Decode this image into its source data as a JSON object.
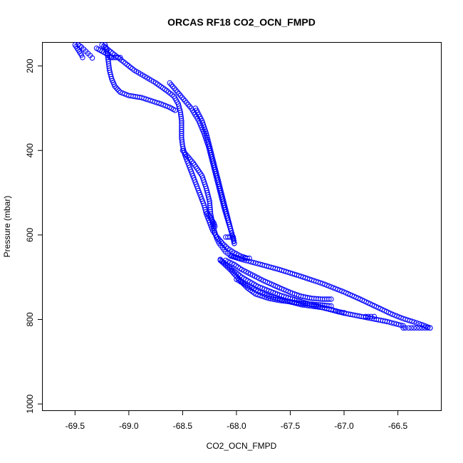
{
  "chart_data": {
    "type": "scatter",
    "title": "ORCAS RF18 CO2_OCN_FMPD",
    "xlabel": "CO2_OCN_FMPD",
    "ylabel": "Pressure (mbar)",
    "xlim": [
      -69.8,
      -66.1
    ],
    "ylim": [
      1015,
      145
    ],
    "y_reversed": true,
    "grid": false,
    "x_ticks": [
      -69.5,
      -69.0,
      -68.5,
      -68.0,
      -67.5,
      -67.0,
      -66.5
    ],
    "x_tick_labels": [
      "-69.5",
      "-69.0",
      "-68.5",
      "-68.0",
      "-67.5",
      "-67.0",
      "-66.5"
    ],
    "y_ticks": [
      200,
      400,
      600,
      800,
      1000
    ],
    "y_tick_labels": [
      "200",
      "400",
      "600",
      "800",
      "1000"
    ],
    "marker_color": "#0000ff",
    "series": [
      {
        "x": [
          -69.47,
          -69.44,
          -69.42,
          -69.4,
          -69.38,
          -69.36,
          -69.34
        ],
        "y": [
          150,
          155,
          160,
          165,
          170,
          175,
          181
        ]
      },
      {
        "x": [
          -69.5,
          -69.48,
          -69.46,
          -69.44,
          -69.43
        ],
        "y": [
          150,
          158,
          166,
          174,
          180
        ]
      },
      {
        "x": [
          -69.3,
          -69.25,
          -69.2,
          -69.18,
          -69.17,
          -69.16,
          -69.14,
          -69.12,
          -69.1,
          -69.08
        ],
        "y": [
          158,
          165,
          172,
          178,
          180,
          180,
          180,
          180,
          180,
          180
        ]
      },
      {
        "x": [
          -69.22,
          -69.2,
          -69.19,
          -69.18,
          -69.16,
          -69.13,
          -69.08,
          -69.0,
          -68.88,
          -68.7,
          -68.62,
          -68.57
        ],
        "y": [
          150,
          170,
          190,
          210,
          230,
          248,
          262,
          270,
          275,
          290,
          298,
          305
        ]
      },
      {
        "x": [
          -69.25,
          -69.15,
          -69.05,
          -68.95,
          -68.85,
          -68.75,
          -68.65,
          -68.58,
          -68.54,
          -68.52,
          -68.51,
          -68.51,
          -68.51,
          -68.5,
          -68.48,
          -68.45,
          -68.42,
          -68.39,
          -68.36,
          -68.33,
          -68.3,
          -68.28,
          -68.25,
          -68.22,
          -68.18,
          -68.13,
          -68.08,
          -68.02,
          -67.96,
          -67.9,
          -67.88
        ],
        "y": [
          150,
          170,
          190,
          210,
          225,
          240,
          258,
          272,
          290,
          310,
          330,
          350,
          370,
          390,
          410,
          430,
          450,
          470,
          490,
          510,
          530,
          550,
          570,
          590,
          605,
          620,
          632,
          642,
          650,
          655,
          655
        ]
      },
      {
        "x": [
          -68.62,
          -68.52,
          -68.42,
          -68.35,
          -68.3,
          -68.26,
          -68.23,
          -68.2,
          -68.17,
          -68.14,
          -68.11,
          -68.08,
          -68.05,
          -68.03,
          -68.02,
          -68.03,
          -68.06,
          -68.1
        ],
        "y": [
          240,
          270,
          300,
          330,
          360,
          390,
          420,
          450,
          480,
          510,
          540,
          565,
          590,
          608,
          620,
          605,
          605,
          605
        ]
      },
      {
        "x": [
          -68.38,
          -68.32,
          -68.28,
          -68.25,
          -68.22,
          -68.19,
          -68.16,
          -68.13,
          -68.1,
          -68.07,
          -68.04,
          -68.02
        ],
        "y": [
          300,
          330,
          360,
          390,
          420,
          450,
          480,
          510,
          540,
          570,
          600,
          620
        ]
      },
      {
        "x": [
          -68.5,
          -68.4,
          -68.32,
          -68.28,
          -68.25,
          -68.24,
          -68.22,
          -68.2,
          -68.18,
          -68.16,
          -68.13,
          -68.1,
          -68.06,
          -68.02,
          -67.98,
          -67.95,
          -67.92
        ],
        "y": [
          400,
          430,
          460,
          490,
          520,
          550,
          575,
          595,
          610,
          620,
          630,
          640,
          648,
          652,
          655,
          655,
          655
        ]
      },
      {
        "x": [
          -68.27,
          -68.25,
          -68.23,
          -68.21,
          -68.2
        ],
        "y": [
          548,
          556,
          564,
          572,
          580
        ]
      },
      {
        "x": [
          -68.05,
          -67.95,
          -67.8,
          -67.6,
          -67.4,
          -67.2,
          -67.0,
          -66.85,
          -66.7,
          -66.55,
          -66.45,
          -66.35,
          -66.28,
          -66.22,
          -66.2
        ],
        "y": [
          650,
          658,
          668,
          682,
          698,
          715,
          735,
          752,
          770,
          788,
          798,
          806,
          812,
          818,
          820
        ]
      },
      {
        "x": [
          -66.2,
          -66.25,
          -66.3,
          -66.35,
          -66.4,
          -66.43,
          -66.45
        ],
        "y": [
          820,
          820,
          820,
          820,
          820,
          820,
          820
        ]
      },
      {
        "x": [
          -66.45,
          -66.6,
          -66.8,
          -67.0,
          -67.2,
          -67.4,
          -67.6,
          -67.8,
          -67.95,
          -68.05,
          -68.12,
          -68.15
        ],
        "y": [
          815,
          805,
          795,
          785,
          772,
          758,
          742,
          722,
          700,
          680,
          665,
          658
        ]
      },
      {
        "x": [
          -68.1,
          -68.02,
          -67.95,
          -67.85,
          -67.75,
          -67.6,
          -67.48,
          -67.4,
          -67.3,
          -67.2,
          -67.12
        ],
        "y": [
          660,
          670,
          682,
          695,
          708,
          725,
          738,
          745,
          750,
          752,
          752
        ]
      },
      {
        "x": [
          -68.0,
          -67.9,
          -67.8,
          -67.7,
          -67.55,
          -67.4,
          -67.2,
          -67.1,
          -67.05,
          -67.0
        ],
        "y": [
          705,
          720,
          733,
          745,
          755,
          765,
          772,
          778,
          782,
          784
        ]
      },
      {
        "x": [
          -66.8,
          -66.75,
          -66.72
        ],
        "y": [
          793,
          793,
          793
        ]
      },
      {
        "x": [
          -68.15,
          -68.1,
          -68.05,
          -68.0,
          -67.95,
          -67.9,
          -67.82,
          -67.7,
          -67.6,
          -67.5,
          -67.4,
          -67.3,
          -67.2,
          -67.12
        ],
        "y": [
          660,
          672,
          684,
          698,
          712,
          725,
          740,
          750,
          755,
          758,
          762,
          764,
          766,
          768
        ]
      }
    ]
  }
}
